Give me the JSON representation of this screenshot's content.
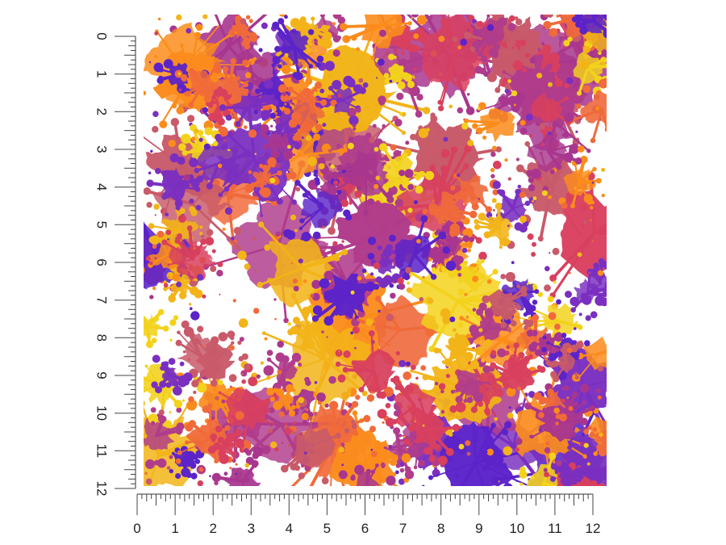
{
  "ruler": {
    "unit_labels": [
      "0",
      "1",
      "2",
      "3",
      "4",
      "5",
      "6",
      "7",
      "8",
      "9",
      "10",
      "11",
      "12"
    ],
    "subdivisions_per_unit": 8
  },
  "swatch": {
    "pattern": "paint-splatter",
    "background": "#ffffff",
    "colors": [
      "#7a2fc0",
      "#5b23c9",
      "#b03c8c",
      "#d8405e",
      "#f06a3a",
      "#fb8c1c",
      "#f2b418",
      "#f3d21c",
      "#a8368f",
      "#c85a6a"
    ]
  }
}
